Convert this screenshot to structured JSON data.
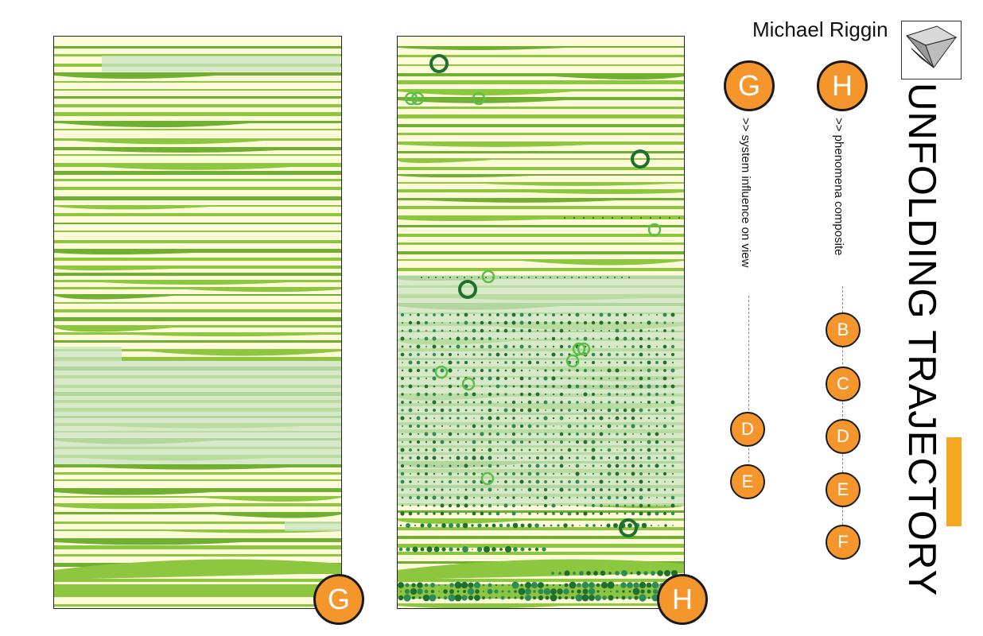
{
  "author": "Michael Riggin",
  "title": "UNFOLDING TRAJECTORY",
  "colors": {
    "background": "#fdfbd9",
    "stripe": "#8dc63f",
    "stripe_dark": "#6fb033",
    "overlay": "#c9e3c3",
    "marker_dark": "#1f6f30",
    "marker_light": "#5cbf4a",
    "badge": "#f5962d",
    "accent": "#f5a623"
  },
  "panels": [
    {
      "id": "G",
      "badge": "G"
    },
    {
      "id": "H",
      "badge": "H"
    }
  ],
  "legend": {
    "column_g": {
      "badge": "G",
      "label": ">> system influence on view",
      "items": [
        "D",
        "E"
      ]
    },
    "column_h": {
      "badge": "H",
      "label": ">> phenomena composite",
      "items": [
        "B",
        "C",
        "D",
        "E",
        "F"
      ]
    }
  },
  "logo_icon": "folded-origami-icon"
}
